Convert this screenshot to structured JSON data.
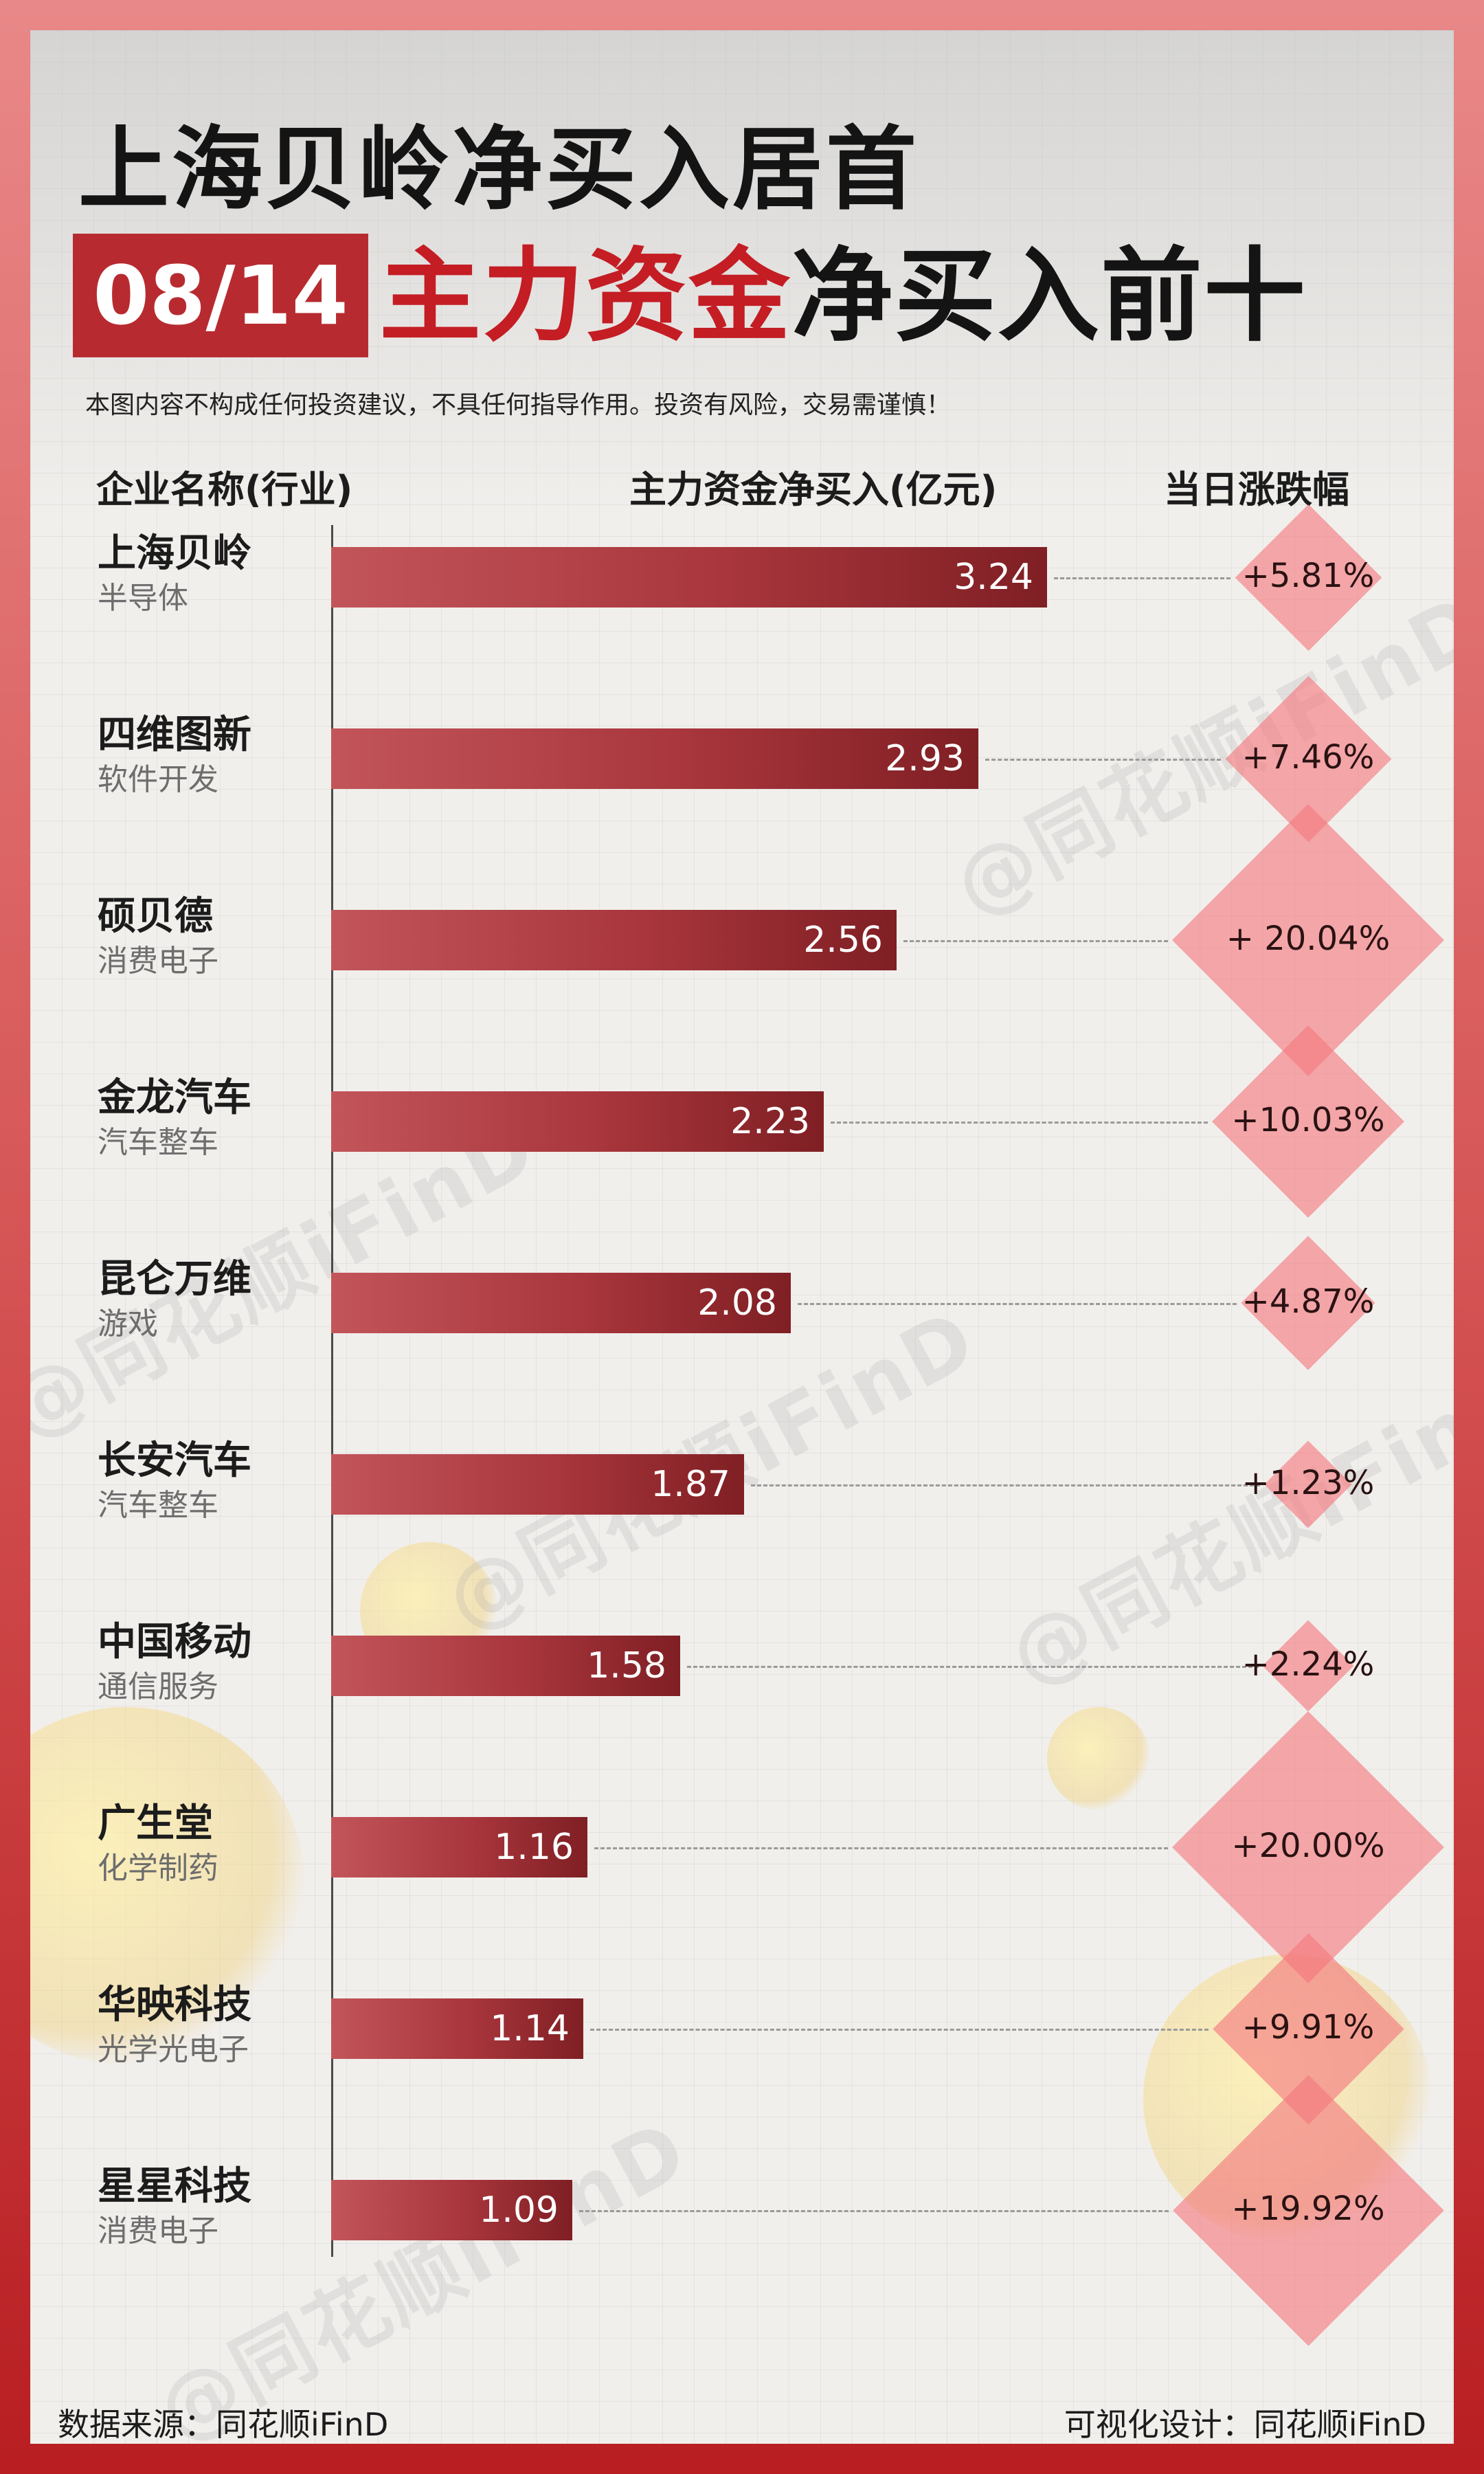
{
  "header": {
    "title": "上海贝岭净买入居首",
    "date": "08/14",
    "subtitle_red": "主力资金",
    "subtitle_black": "净买入前十",
    "disclaimer": "本图内容不构成任何投资建议，不具任何指导作用。投资有风险，交易需谨慎！"
  },
  "columns": {
    "company": "企业名称(行业)",
    "net_buy": "主力资金净买入(亿元)",
    "change": "当日涨跌幅"
  },
  "colors": {
    "bar": "#a8363c",
    "diamond": "#f4787e",
    "accent_red": "#c41d24",
    "frame": "#b81e22"
  },
  "watermark": "@同花顺iFinD",
  "chart_data": {
    "type": "bar",
    "orientation": "horizontal",
    "categories": [
      "上海贝岭",
      "四维图新",
      "硕贝德",
      "金龙汽车",
      "昆仑万维",
      "长安汽车",
      "中国移动",
      "广生堂",
      "华映科技",
      "星星科技"
    ],
    "industries": [
      "半导体",
      "软件开发",
      "消费电子",
      "汽车整车",
      "游戏",
      "汽车整车",
      "通信服务",
      "化学制药",
      "光学光电子",
      "消费电子"
    ],
    "value_labels": [
      "3.24",
      "2.93",
      "2.56",
      "2.23",
      "2.08",
      "1.87",
      "1.58",
      "1.16",
      "1.14",
      "1.09"
    ],
    "values": [
      3.24,
      2.93,
      2.56,
      2.23,
      2.08,
      1.87,
      1.58,
      1.16,
      1.14,
      1.09
    ],
    "change_labels": [
      "+5.81%",
      "+7.46%",
      "+ 20.04%",
      "+10.03%",
      "+4.87%",
      "+1.23%",
      "+2.24%",
      "+20.00%",
      "+9.91%",
      "+19.92%"
    ],
    "change_values": [
      5.81,
      7.46,
      20.04,
      10.03,
      4.87,
      1.23,
      2.24,
      20.0,
      9.91,
      19.92
    ],
    "title": "",
    "xlabel": "",
    "ylabel": "",
    "xlim": [
      0,
      3.24
    ]
  },
  "footer": {
    "source": "数据来源：同花顺iFinD",
    "design": "可视化设计：同花顺iFinD"
  }
}
